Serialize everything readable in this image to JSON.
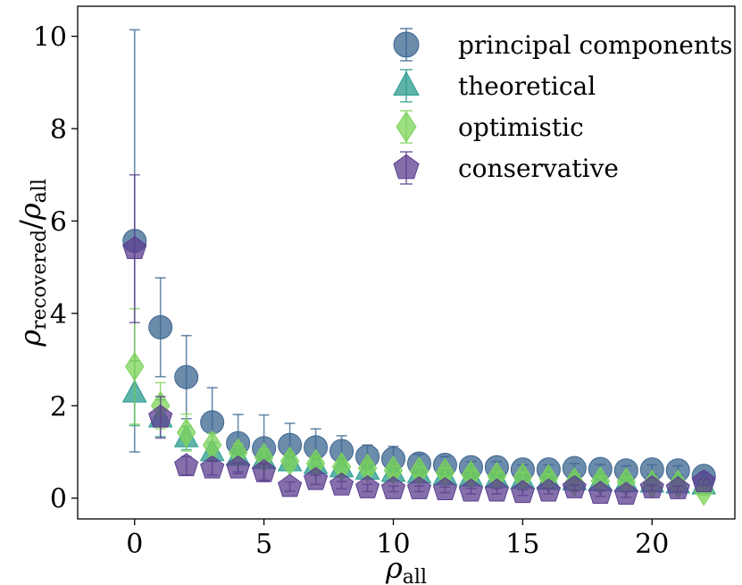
{
  "chart_data": {
    "type": "scatter",
    "xlabel": "ρ_all",
    "ylabel": "ρ_recovered/ρ_all",
    "xlim": [
      -2.2,
      23.2
    ],
    "ylim": [
      -0.45,
      10.65
    ],
    "xticks": [
      0,
      5,
      10,
      15,
      20
    ],
    "yticks": [
      0,
      2,
      4,
      6,
      8,
      10
    ],
    "grid": false,
    "legend_position": "top-right",
    "series": [
      {
        "name": "principal components",
        "marker": "circle",
        "color": "#3b6590",
        "x": [
          0,
          1,
          2,
          3,
          4,
          5,
          6,
          7,
          8,
          9,
          10,
          11,
          12,
          13,
          14,
          15,
          16,
          17,
          18,
          19,
          20,
          21,
          22
        ],
        "y": [
          5.57,
          3.7,
          2.62,
          1.64,
          1.19,
          1.08,
          1.15,
          1.1,
          1.02,
          0.9,
          0.85,
          0.75,
          0.72,
          0.67,
          0.67,
          0.62,
          0.62,
          0.65,
          0.63,
          0.6,
          0.62,
          0.6,
          0.48
        ],
        "err": [
          4.57,
          1.07,
          0.9,
          0.75,
          0.62,
          0.72,
          0.47,
          0.4,
          0.33,
          0.25,
          0.27,
          0.2,
          0.18,
          0.12,
          0.12,
          0.1,
          0.1,
          0.1,
          0.1,
          0.1,
          0.1,
          0.1,
          0.08
        ]
      },
      {
        "name": "theoretical",
        "marker": "triangle",
        "color": "#2a9b8e",
        "x": [
          0,
          1,
          2,
          3,
          4,
          5,
          6,
          7,
          8,
          9,
          10,
          11,
          12,
          13,
          14,
          15,
          16,
          17,
          18,
          19,
          20,
          21,
          22
        ],
        "y": [
          2.27,
          1.73,
          1.3,
          1.0,
          0.9,
          0.83,
          0.78,
          0.72,
          0.65,
          0.6,
          0.55,
          0.52,
          0.48,
          0.45,
          0.42,
          0.4,
          0.38,
          0.37,
          0.35,
          0.33,
          0.32,
          0.3,
          0.28
        ],
        "err": [
          0.7,
          0.4,
          0.25,
          0.2,
          0.15,
          0.12,
          0.1,
          0.1,
          0.08,
          0.08,
          0.06,
          0.06,
          0.05,
          0.05,
          0.05,
          0.05,
          0.05,
          0.05,
          0.05,
          0.05,
          0.05,
          0.05,
          0.05
        ]
      },
      {
        "name": "optimistic",
        "marker": "diamond",
        "color": "#7dd35a",
        "x": [
          0,
          1,
          2,
          3,
          4,
          5,
          6,
          7,
          8,
          9,
          10,
          11,
          12,
          13,
          14,
          15,
          16,
          17,
          18,
          19,
          20,
          21,
          22
        ],
        "y": [
          2.85,
          2.0,
          1.42,
          1.15,
          0.98,
          0.88,
          0.8,
          0.75,
          0.68,
          0.65,
          0.6,
          0.58,
          0.55,
          0.5,
          0.47,
          0.45,
          0.42,
          0.35,
          0.37,
          0.35,
          0.3,
          0.3,
          0.15
        ],
        "err": [
          1.25,
          0.5,
          0.4,
          0.25,
          0.2,
          0.18,
          0.15,
          0.15,
          0.12,
          0.12,
          0.1,
          0.1,
          0.1,
          0.1,
          0.1,
          0.1,
          0.1,
          0.18,
          0.1,
          0.1,
          0.1,
          0.1,
          0.08
        ]
      },
      {
        "name": "conservative",
        "marker": "pentagon",
        "color": "#5b3f8f",
        "x": [
          0,
          1,
          2,
          3,
          4,
          5,
          6,
          7,
          8,
          9,
          10,
          11,
          12,
          13,
          14,
          15,
          16,
          17,
          18,
          19,
          20,
          21,
          22
        ],
        "y": [
          5.4,
          1.75,
          0.7,
          0.65,
          0.65,
          0.57,
          0.25,
          0.4,
          0.28,
          0.22,
          0.2,
          0.2,
          0.18,
          0.15,
          0.15,
          0.12,
          0.15,
          0.22,
          0.1,
          0.08,
          0.22,
          0.2,
          0.35
        ],
        "err": [
          1.6,
          0.45,
          0.2,
          0.15,
          0.12,
          0.18,
          0.1,
          0.1,
          0.08,
          0.08,
          0.06,
          0.06,
          0.06,
          0.06,
          0.06,
          0.06,
          0.06,
          0.06,
          0.06,
          0.06,
          0.06,
          0.06,
          0.06
        ]
      }
    ]
  }
}
